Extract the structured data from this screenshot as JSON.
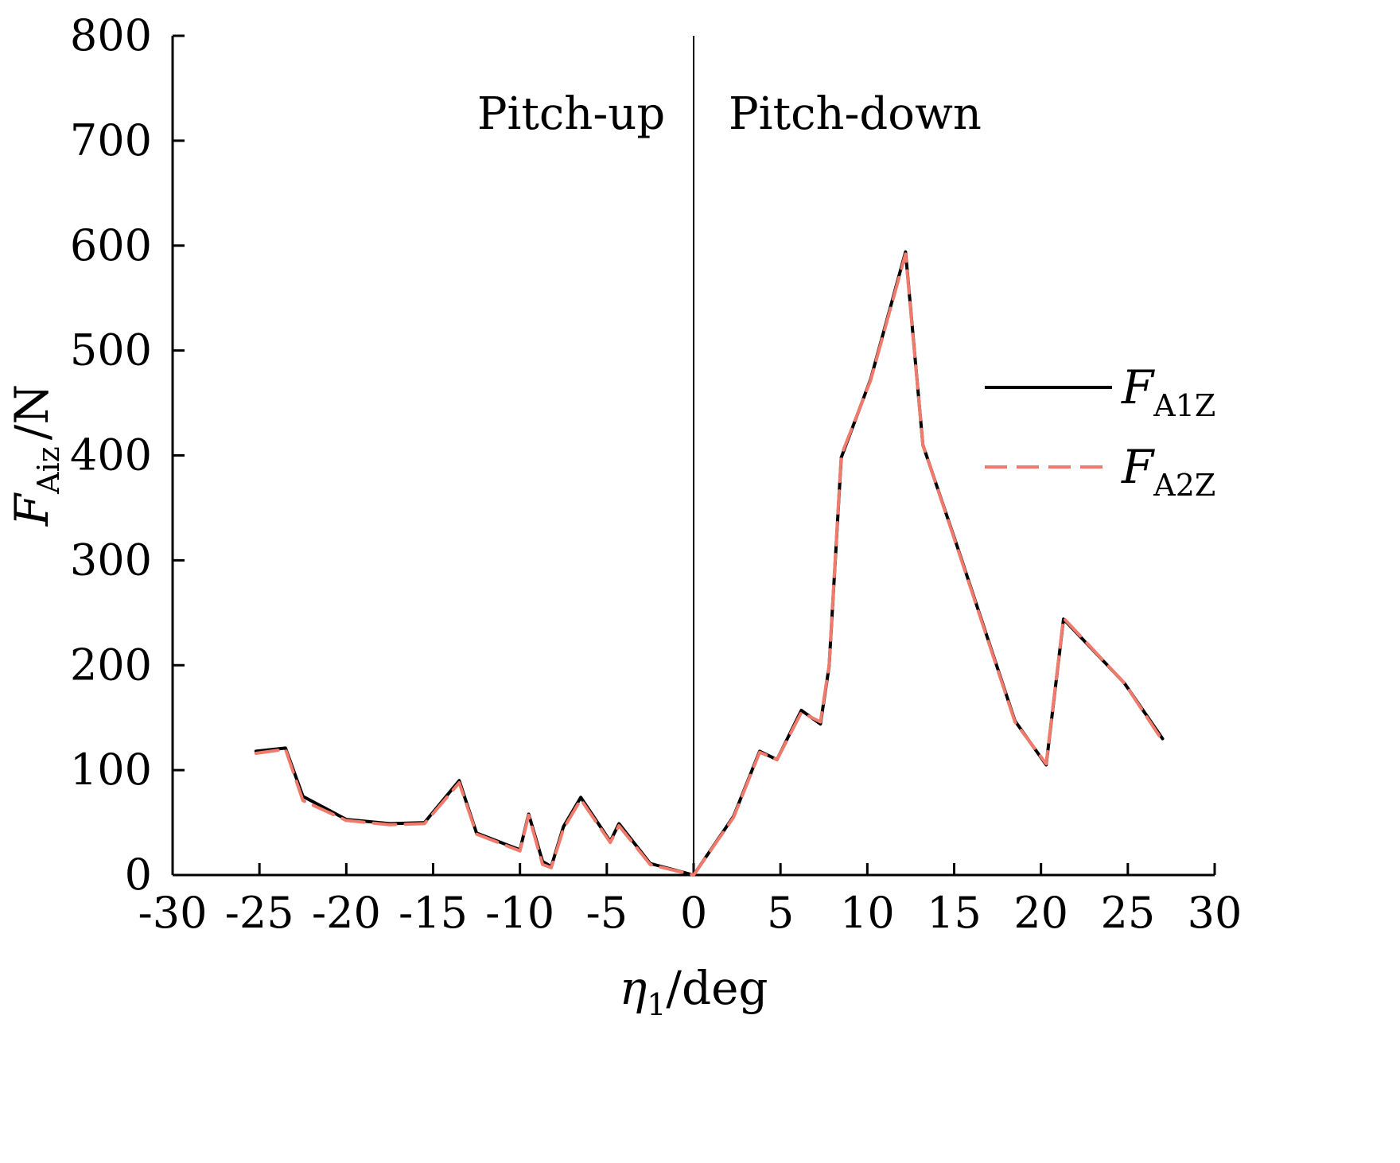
{
  "chart_data": {
    "type": "line",
    "title": "",
    "xlabel": {
      "symbol": "η",
      "subscript": "1",
      "unit": "/deg"
    },
    "ylabel": {
      "symbol": "F",
      "subscript": "Aiz",
      "unit": "/N"
    },
    "xlim": [
      -30,
      30
    ],
    "ylim": [
      0,
      800
    ],
    "xticks": [
      -30,
      -25,
      -20,
      -15,
      -10,
      -5,
      0,
      5,
      10,
      15,
      20,
      25,
      30
    ],
    "yticks": [
      0,
      100,
      200,
      300,
      400,
      500,
      600,
      700,
      800
    ],
    "grid": false,
    "legend_position": "right",
    "annotations": [
      {
        "text": "Pitch-up",
        "side": "left"
      },
      {
        "text": "Pitch-down",
        "side": "right"
      }
    ],
    "divider_x": 0,
    "series": [
      {
        "name": "FA1Z",
        "symbol": "F",
        "subscript": "A1Z",
        "color": "#000000",
        "dash": "solid",
        "x": [
          -25.2,
          -23.5,
          -22.5,
          -20,
          -17.5,
          -15.5,
          -13.5,
          -12.5,
          -10,
          -9.5,
          -8.7,
          -8.2,
          -7.5,
          -6.5,
          -4.8,
          -4.3,
          -2.5,
          0,
          2.3,
          3.8,
          4.8,
          6.2,
          7.3,
          7.8,
          8.5,
          10.2,
          12.2,
          13.2,
          15.2,
          18.5,
          20.3,
          21.3,
          24.8,
          27
        ],
        "y": [
          118,
          121,
          75,
          53,
          49,
          50,
          90,
          40,
          24,
          58,
          13,
          8,
          46,
          74,
          32,
          49,
          11,
          0,
          56,
          118,
          110,
          157,
          144,
          199,
          398,
          473,
          594,
          410,
          312,
          147,
          105,
          244,
          183,
          130
        ]
      },
      {
        "name": "FA2Z",
        "symbol": "F",
        "subscript": "A2Z",
        "color": "#f07a6c",
        "dash": "dashed",
        "x": [
          -25.2,
          -23.5,
          -22.5,
          -20,
          -17.5,
          -15.5,
          -13.5,
          -12.5,
          -10,
          -9.5,
          -8.7,
          -8.2,
          -7.5,
          -6.5,
          -4.8,
          -4.3,
          -2.5,
          0,
          2.3,
          3.8,
          4.8,
          6.2,
          7.3,
          7.8,
          8.5,
          10.2,
          12.2,
          13.2,
          15.2,
          18.5,
          20.3,
          21.3,
          24.8,
          27
        ],
        "y": [
          116,
          120,
          71,
          52,
          48,
          49,
          88,
          39,
          23,
          57,
          10,
          7,
          44,
          72,
          31,
          47,
          10,
          0,
          55,
          117,
          110,
          155,
          146,
          200,
          400,
          472,
          592,
          410,
          311,
          146,
          106,
          245,
          183,
          128
        ]
      }
    ]
  }
}
